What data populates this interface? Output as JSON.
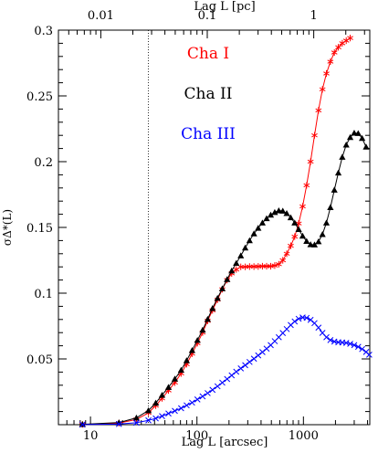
{
  "chart_data": {
    "type": "line",
    "xlabel": "Lag L [arcsec]",
    "xlabel_top": "Lag L [pc]",
    "ylabel": "σΔ*(L)",
    "x_scale": "log",
    "xlim": [
      5,
      4200
    ],
    "ylim": [
      0,
      0.3
    ],
    "x_ticks": [
      10,
      100,
      1000
    ],
    "x_tick_labels": [
      "10",
      "100",
      "1000"
    ],
    "x_top_ticks_pc": [
      0.01,
      0.1,
      1
    ],
    "x_top_ticks_arcsec": [
      12.5,
      125,
      1250
    ],
    "x_top_tick_labels": [
      "0.01",
      "0.1",
      "1"
    ],
    "y_ticks": [
      0.05,
      0.1,
      0.15,
      0.2,
      0.25,
      0.3
    ],
    "y_tick_labels": [
      "0.05",
      "0.1",
      "0.15",
      "0.2",
      "0.25",
      "0.3"
    ],
    "vertical_line_x": 35,
    "grid": false,
    "legend_placement": "top-center",
    "series": [
      {
        "name": "Cha I",
        "color": "#ff0000",
        "marker": "asterisk",
        "x": [
          8.4,
          18.5,
          27,
          35,
          41,
          47,
          54,
          62,
          71,
          80,
          90,
          101,
          113,
          126,
          140,
          156,
          173,
          192,
          212,
          234,
          258,
          284,
          312,
          343,
          376,
          412,
          451,
          493,
          538,
          587,
          640,
          697,
          760,
          828,
          902,
          983,
          1071,
          1167,
          1271,
          1385,
          1509,
          1644,
          1792,
          1952,
          2127,
          2317,
          2524,
          2750
        ],
        "y": [
          0.0002,
          0.0012,
          0.004,
          0.009,
          0.0145,
          0.02,
          0.026,
          0.032,
          0.039,
          0.046,
          0.054,
          0.062,
          0.07,
          0.079,
          0.087,
          0.095,
          0.103,
          0.11,
          0.115,
          0.118,
          0.12,
          0.12,
          0.1202,
          0.1202,
          0.1203,
          0.1205,
          0.1205,
          0.1205,
          0.121,
          0.122,
          0.125,
          0.13,
          0.136,
          0.143,
          0.153,
          0.166,
          0.182,
          0.2,
          0.22,
          0.239,
          0.255,
          0.267,
          0.276,
          0.283,
          0.287,
          0.29,
          0.292,
          0.294
        ]
      },
      {
        "name": "Cha II",
        "color": "#000000",
        "marker": "filled-triangle",
        "x": [
          8.4,
          18.5,
          27,
          35,
          41,
          47,
          54,
          62,
          71,
          80,
          90,
          101,
          113,
          126,
          140,
          156,
          173,
          192,
          212,
          234,
          258,
          284,
          312,
          343,
          376,
          412,
          451,
          493,
          538,
          587,
          640,
          697,
          760,
          828,
          902,
          983,
          1071,
          1167,
          1271,
          1385,
          1509,
          1644,
          1792,
          1952,
          2127,
          2317,
          2524,
          2750,
          3000,
          3270,
          3560,
          3880
        ],
        "y": [
          0.0003,
          0.0016,
          0.0052,
          0.0108,
          0.0165,
          0.0225,
          0.0285,
          0.0348,
          0.0415,
          0.0488,
          0.0565,
          0.0642,
          0.072,
          0.0802,
          0.0885,
          0.0962,
          0.1035,
          0.1105,
          0.117,
          0.1228,
          0.1285,
          0.1345,
          0.14,
          0.1452,
          0.1495,
          0.1535,
          0.1568,
          0.1595,
          0.1615,
          0.1628,
          0.1625,
          0.1607,
          0.1575,
          0.1535,
          0.1485,
          0.1435,
          0.1395,
          0.137,
          0.1368,
          0.1392,
          0.1447,
          0.1535,
          0.1652,
          0.1785,
          0.1915,
          0.2035,
          0.2128,
          0.2185,
          0.2218,
          0.2215,
          0.2178,
          0.2112
        ]
      },
      {
        "name": "Cha III",
        "color": "#0000ff",
        "marker": "cross",
        "x": [
          8.4,
          18.5,
          27,
          35,
          41,
          47,
          54,
          62,
          71,
          80,
          90,
          101,
          113,
          126,
          140,
          156,
          173,
          192,
          212,
          234,
          258,
          284,
          312,
          343,
          376,
          412,
          451,
          493,
          538,
          587,
          640,
          697,
          760,
          828,
          902,
          983,
          1071,
          1167,
          1271,
          1385,
          1509,
          1644,
          1792,
          1952,
          2127,
          2317,
          2524,
          2750,
          3000,
          3270,
          3560,
          3880,
          4150
        ],
        "y": [
          0.0001,
          0.0005,
          0.0015,
          0.0033,
          0.0048,
          0.0065,
          0.0085,
          0.0105,
          0.0125,
          0.0147,
          0.0168,
          0.0192,
          0.0215,
          0.024,
          0.0265,
          0.0292,
          0.032,
          0.0347,
          0.0375,
          0.0403,
          0.0428,
          0.0452,
          0.0477,
          0.0502,
          0.0527,
          0.0552,
          0.0578,
          0.0605,
          0.0635,
          0.0665,
          0.0697,
          0.0727,
          0.0758,
          0.0785,
          0.0805,
          0.0815,
          0.0812,
          0.0797,
          0.0772,
          0.0738,
          0.0698,
          0.0665,
          0.0643,
          0.0632,
          0.0627,
          0.0625,
          0.0622,
          0.0615,
          0.0605,
          0.0592,
          0.0575,
          0.0553,
          0.0532
        ]
      }
    ],
    "legend": [
      {
        "label": "Cha I",
        "color": "#ff0000"
      },
      {
        "label": "Cha II",
        "color": "#000000"
      },
      {
        "label": "Cha III",
        "color": "#0000ff"
      }
    ]
  }
}
